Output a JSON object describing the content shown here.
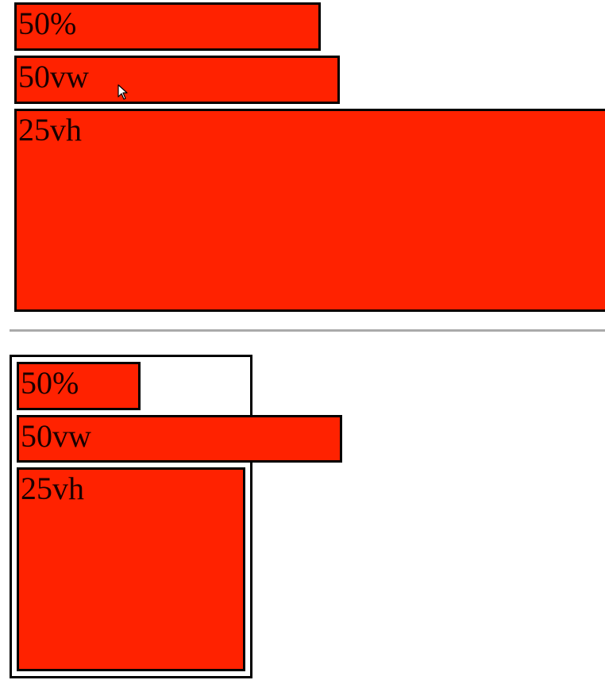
{
  "colors": {
    "box_fill": "#ff2200",
    "border": "#000000",
    "divider": "#aaaaaa",
    "background": "#ffffff"
  },
  "top_section": {
    "box_percent": "50%",
    "box_vw": "50vw",
    "box_vh": "25vh"
  },
  "bottom_section": {
    "box_percent": "50%",
    "box_vw": "50vw",
    "box_vh": "25vh"
  },
  "cursor": {
    "icon": "arrow-pointer-icon"
  }
}
